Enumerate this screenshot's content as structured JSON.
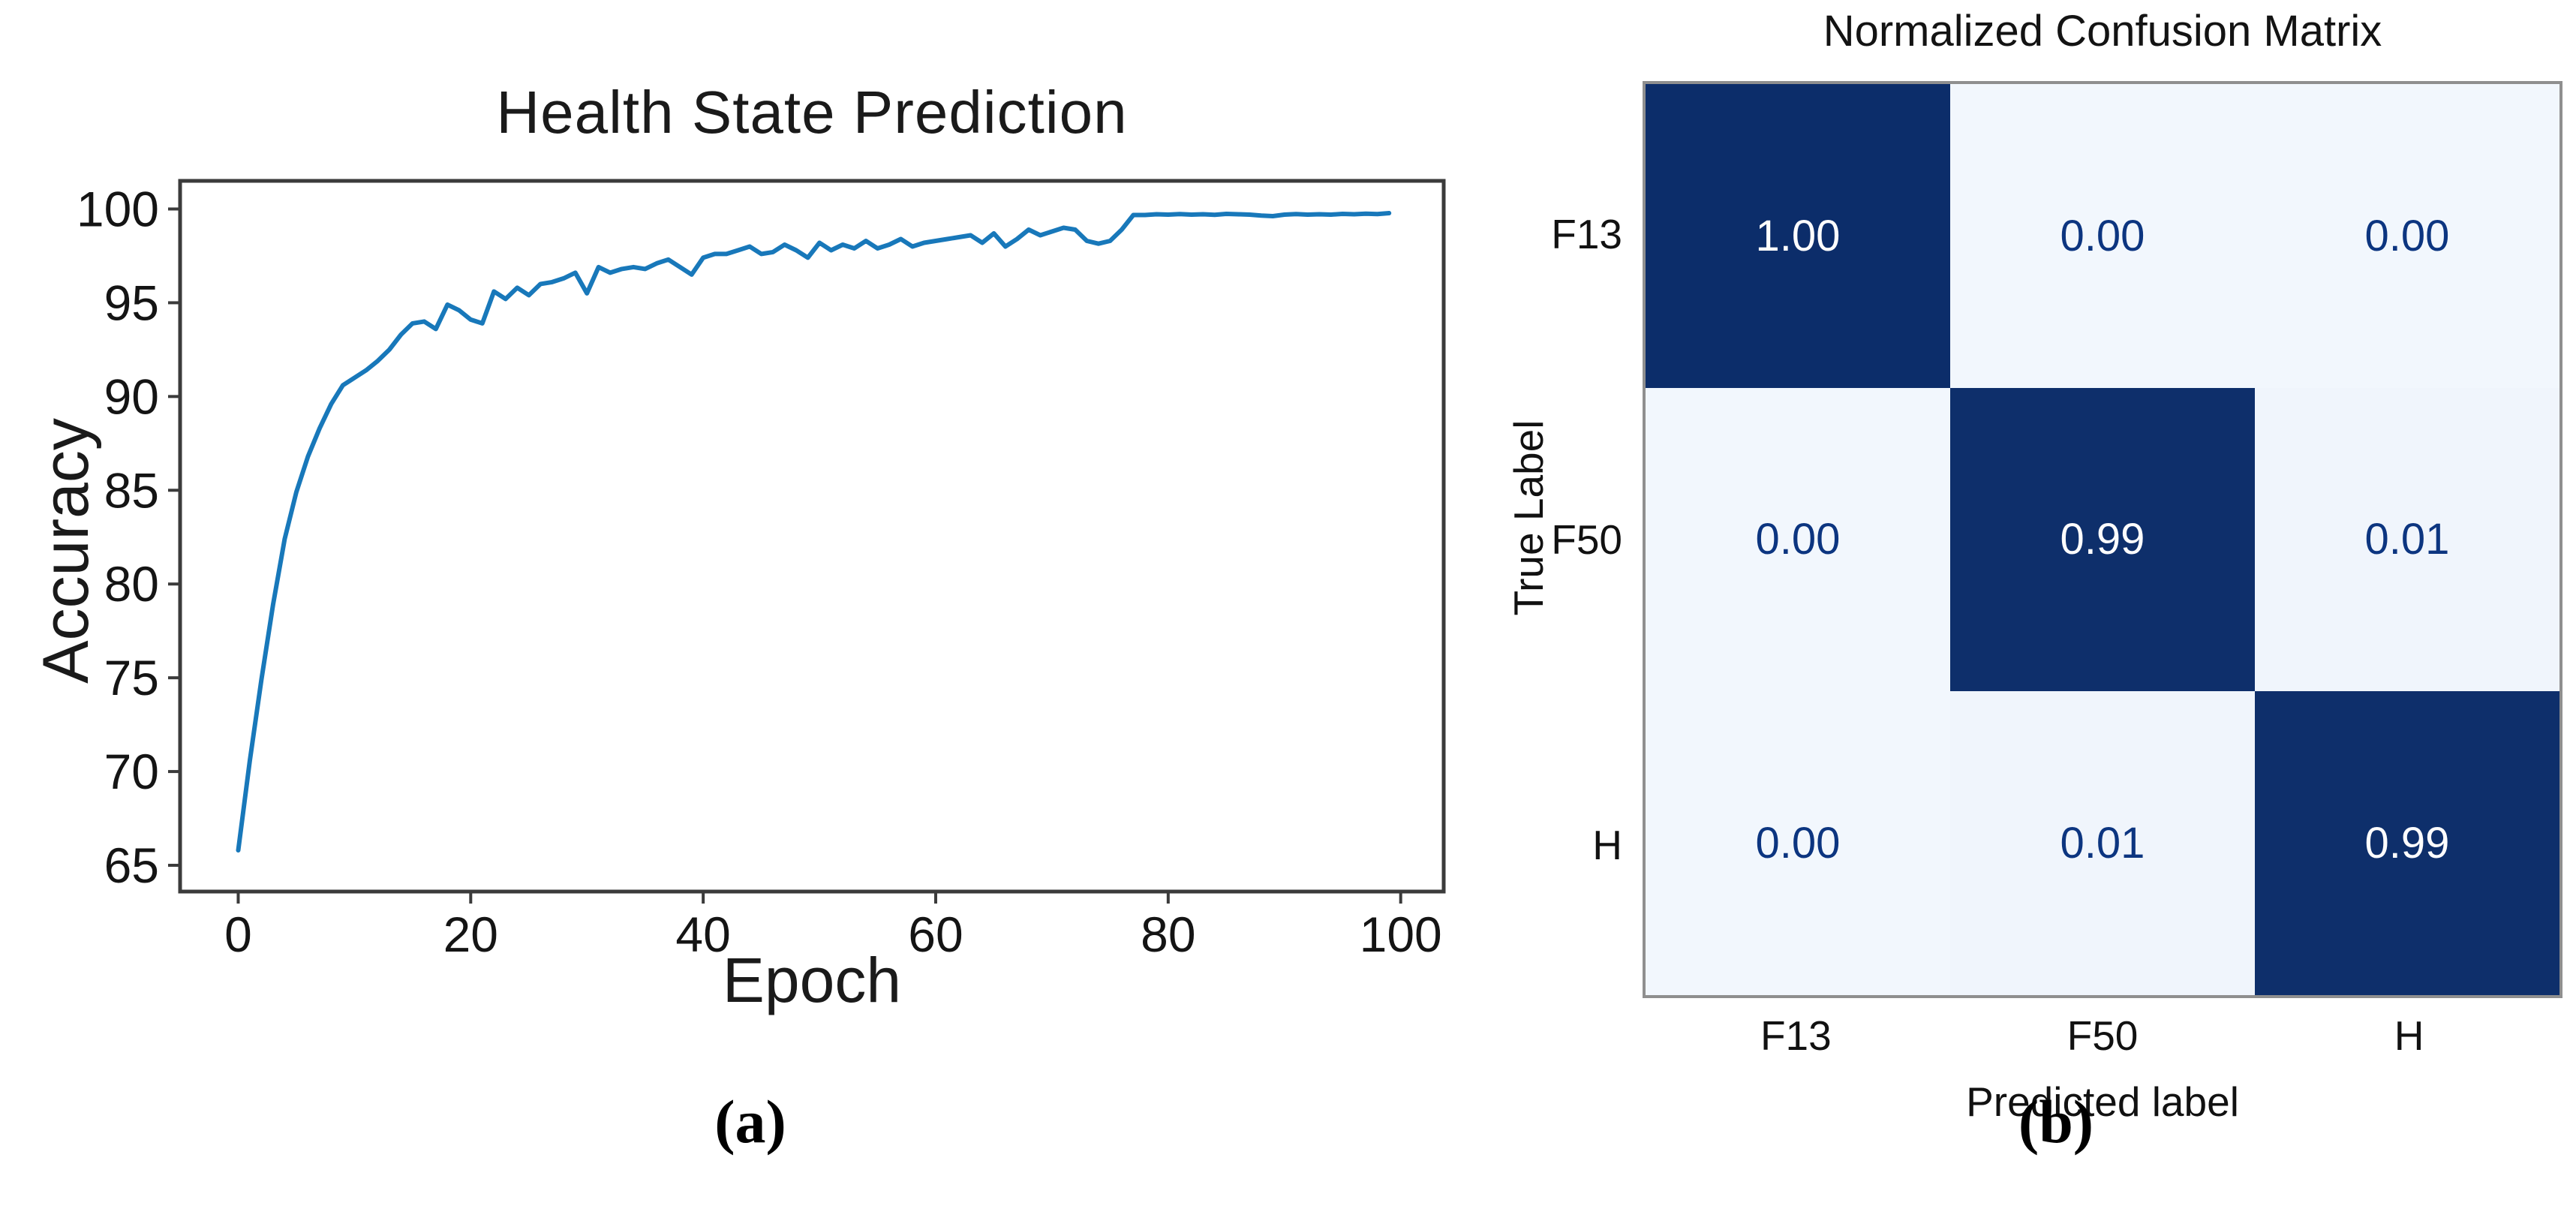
{
  "captions": {
    "a": "(a)",
    "b": "(b)"
  },
  "chart_data": [
    {
      "type": "line",
      "title": "Health State Prediction",
      "xlabel": "Epoch",
      "ylabel": "Accuracy",
      "xlim": [
        -5,
        103.7
      ],
      "ylim": [
        63.6,
        101.5
      ],
      "xticks": [
        0,
        20,
        40,
        60,
        80,
        100
      ],
      "yticks": [
        65,
        70,
        75,
        80,
        85,
        90,
        95,
        100
      ],
      "grid": false,
      "legend": null,
      "line_color": "#1878ba",
      "axis_color": "#3b3b3b",
      "x": [
        0,
        1,
        2,
        3,
        4,
        5,
        6,
        7,
        8,
        9,
        10,
        11,
        12,
        13,
        14,
        15,
        16,
        17,
        18,
        19,
        20,
        21,
        22,
        23,
        24,
        25,
        26,
        27,
        28,
        29,
        30,
        31,
        32,
        33,
        34,
        35,
        36,
        37,
        38,
        39,
        40,
        41,
        42,
        43,
        44,
        45,
        46,
        47,
        48,
        49,
        50,
        51,
        52,
        53,
        54,
        55,
        56,
        57,
        58,
        59,
        60,
        61,
        62,
        63,
        64,
        65,
        66,
        67,
        68,
        69,
        70,
        71,
        72,
        73,
        74,
        75,
        76,
        77,
        78,
        79,
        80,
        81,
        82,
        83,
        84,
        85,
        86,
        87,
        88,
        89,
        90,
        91,
        92,
        93,
        94,
        95,
        96,
        97,
        98,
        99
      ],
      "y": [
        65.8,
        70.6,
        74.9,
        78.9,
        82.4,
        84.9,
        86.8,
        88.3,
        89.6,
        90.6,
        91.0,
        91.4,
        91.9,
        92.5,
        93.3,
        93.9,
        94.0,
        93.6,
        94.9,
        94.6,
        94.1,
        93.9,
        95.6,
        95.2,
        95.8,
        95.4,
        96.0,
        96.1,
        96.3,
        96.6,
        95.5,
        96.9,
        96.6,
        96.8,
        96.9,
        96.8,
        97.1,
        97.3,
        96.9,
        96.5,
        97.4,
        97.6,
        97.6,
        97.8,
        98.0,
        97.6,
        97.7,
        98.1,
        97.8,
        97.4,
        98.2,
        97.8,
        98.1,
        97.9,
        98.3,
        97.9,
        98.1,
        98.4,
        98.0,
        98.2,
        98.3,
        98.4,
        98.5,
        98.6,
        98.2,
        98.7,
        98.0,
        98.4,
        98.9,
        98.6,
        98.8,
        99.0,
        98.9,
        98.3,
        98.15,
        98.3,
        98.9,
        99.68,
        99.68,
        99.72,
        99.7,
        99.73,
        99.7,
        99.72,
        99.69,
        99.74,
        99.72,
        99.7,
        99.65,
        99.62,
        99.7,
        99.73,
        99.7,
        99.72,
        99.7,
        99.74,
        99.72,
        99.75,
        99.73,
        99.78
      ]
    },
    {
      "type": "heatmap",
      "title": "Normalized Confusion Matrix",
      "xlabel": "Predicted label",
      "ylabel": "True Label",
      "x_categories": [
        "F13",
        "F50",
        "H"
      ],
      "y_categories": [
        "F13",
        "F50",
        "H"
      ],
      "values": [
        [
          1.0,
          0.0,
          0.0
        ],
        [
          0.0,
          0.99,
          0.01
        ],
        [
          0.0,
          0.01,
          0.99
        ]
      ],
      "labels": [
        [
          "1.00",
          "0.00",
          "0.00"
        ],
        [
          "0.00",
          "0.99",
          "0.01"
        ],
        [
          "0.00",
          "0.01",
          "0.99"
        ]
      ],
      "color_high": "#0c2d6a",
      "color_low": "#f2f7fd",
      "text_color_high": "#fdfdfd",
      "text_color_low": "#0c3580",
      "border_color": "#8f8f8f"
    }
  ]
}
